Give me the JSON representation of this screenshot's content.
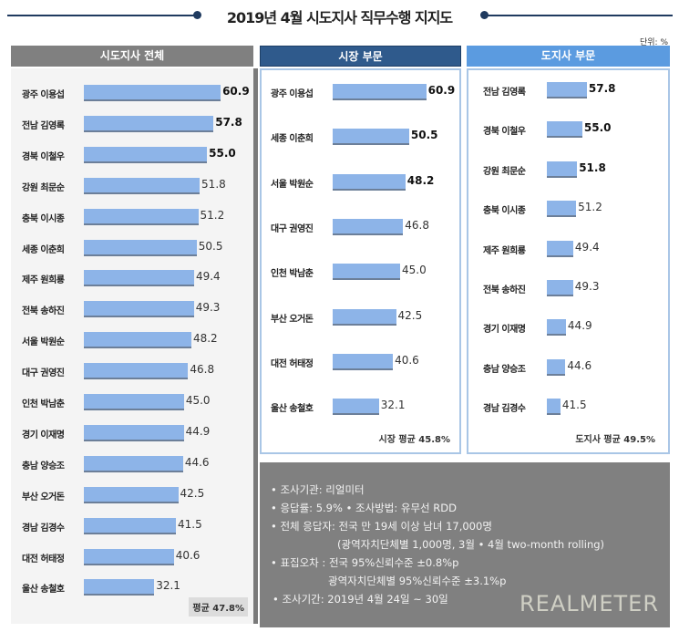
{
  "title": "2019년 4월 시도지사 직무수행 지지도",
  "unit": "단위: %",
  "colors": {
    "bar": "#8db4e8",
    "header_all": "#808080",
    "header_mayor": "#2f5a8c",
    "header_governor": "#5b9be0",
    "title_line": "#1f3a5f",
    "info_bg": "#808080"
  },
  "chart_data": [
    {
      "type": "bar",
      "orientation": "horizontal",
      "title": "시도지사 전체",
      "categories": [
        "광주 이용섭",
        "전남 김영록",
        "경북 이철우",
        "강원 최문순",
        "충북 이시종",
        "세종 이춘희",
        "제주 원희룡",
        "전북 송하진",
        "서울 박원순",
        "대구 권영진",
        "인천 박남춘",
        "경기 이재명",
        "충남 양승조",
        "부산 오거돈",
        "경남 김경수",
        "대전 허태정",
        "울산 송철호"
      ],
      "values": [
        60.9,
        57.8,
        55.0,
        51.8,
        51.2,
        50.5,
        49.4,
        49.3,
        48.2,
        46.8,
        45.0,
        44.9,
        44.6,
        42.5,
        41.5,
        40.6,
        32.1
      ],
      "average": "평균 47.8%"
    },
    {
      "type": "bar",
      "orientation": "horizontal",
      "title": "시장 부문",
      "categories": [
        "광주 이용섭",
        "세종 이춘희",
        "서울 박원순",
        "대구 권영진",
        "인천 박남춘",
        "부산 오거돈",
        "대전 허태정",
        "울산 송철호"
      ],
      "values": [
        60.9,
        50.5,
        48.2,
        46.8,
        45.0,
        42.5,
        40.6,
        32.1
      ],
      "average": "시장 평균 45.8%"
    },
    {
      "type": "bar",
      "orientation": "horizontal",
      "title": "도지사 부문",
      "categories": [
        "전남 김영록",
        "경북 이철우",
        "강원 최문순",
        "충북 이시종",
        "제주 원희룡",
        "전북 송하진",
        "경기 이재명",
        "충남 양승조",
        "경남 김경수"
      ],
      "values": [
        57.8,
        55.0,
        51.8,
        51.2,
        49.4,
        49.3,
        44.9,
        44.6,
        41.5
      ],
      "average": "도지사 평균 49.5%"
    }
  ],
  "info": {
    "lines": [
      "• 조사기관: 리얼미터",
      "• 응답률: 5.9% • 조사방법: 유무선 RDD",
      "• 전체 응답자: 전국 만 19세 이상 남녀 17,000명",
      "(광역자치단체별 1,000명, 3월 • 4월 two-month rolling)",
      "• 표집오차 : 전국 95%신뢰수준 ±0.8%p",
      "광역자치단체별 95%신뢰수준 ±3.1%p",
      "• 조사기간: 2019년 4월 24일 ~ 30일"
    ],
    "logo": "REALMETER"
  }
}
